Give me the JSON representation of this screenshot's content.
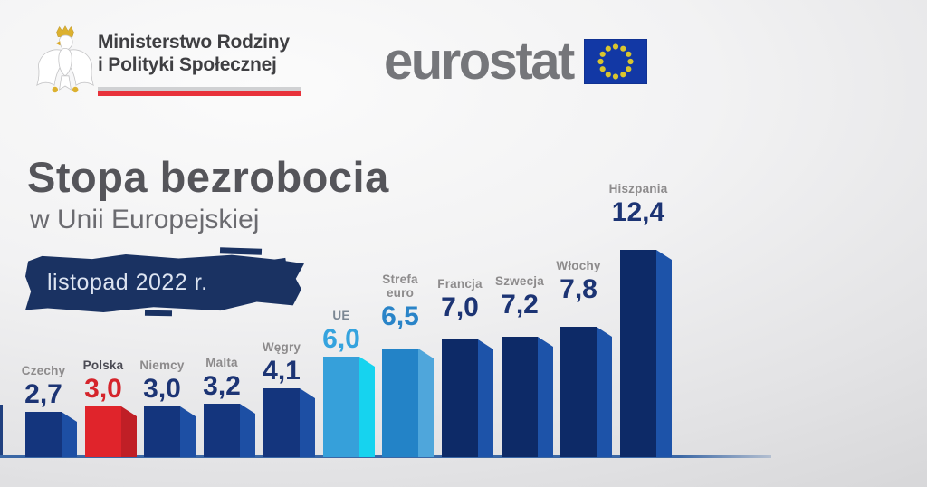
{
  "header": {
    "ministry": {
      "line1": "Ministerstwo Rodziny",
      "line2": "i Polityki Społecznej",
      "logo": "polish-white-eagle",
      "underline_colors": [
        "#d0d1d3",
        "#e8323b"
      ]
    },
    "eurostat": {
      "wordmark": "eurostat",
      "flag": "eu-flag",
      "flag_blue": "#1238a5",
      "star_yellow": "#d9c52f"
    }
  },
  "title": {
    "main": "Stopa bezrobocia",
    "subtitle": "w Unii Europejskiej",
    "period": "listopad 2022 r."
  },
  "colors": {
    "navy_front": "#14357d",
    "navy_side": "#1d4fa4",
    "dark_navy_front": "#0d2a67",
    "dark_navy_side": "#1d53a9",
    "red_front": "#e0242b",
    "red_side": "#c01f26",
    "eu_front": "#36a0da",
    "eu_side": "#16d3ef",
    "eurozone_front": "#2383c7",
    "eurozone_side": "#4fa6db",
    "value_navy": "#1c3474",
    "value_red": "#d5242b",
    "label_gray": "#8d8b8c",
    "banner_navy": "#1a3262",
    "axis_blue": "#3a67a5"
  },
  "chart_data": {
    "type": "bar",
    "title": "Stopa bezrobocia w Unii Europejskiej",
    "period": "listopad 2022 r.",
    "categories": [
      "Czechy",
      "Polska",
      "Niemcy",
      "Malta",
      "Węgry",
      "UE",
      "Strefa euro",
      "Francja",
      "Szwecja",
      "Włochy",
      "Hiszpania"
    ],
    "values": [
      2.7,
      3.0,
      3.0,
      3.2,
      4.1,
      6.0,
      6.5,
      7.0,
      7.2,
      7.8,
      12.4
    ],
    "value_labels": [
      "2,7",
      "3,0",
      "3,0",
      "3,2",
      "4,1",
      "6,0",
      "6,5",
      "7,0",
      "7,2",
      "7,8",
      "12,4"
    ],
    "highlight": "Polska",
    "legend": "none",
    "grid": false,
    "bars": [
      {
        "id": "czechy",
        "name": "Czechy",
        "value": 2.7,
        "value_label": "2,7",
        "front": "#14357d",
        "side": "#1d4fa4",
        "name_color": "#8d8b8c",
        "value_color": "#1c3474"
      },
      {
        "id": "polska",
        "name": "Polska",
        "value": 3.0,
        "value_label": "3,0",
        "front": "#e0242b",
        "side": "#c01f26",
        "name_color": "#4b4b54",
        "value_color": "#d5242b"
      },
      {
        "id": "niemcy",
        "name": "Niemcy",
        "value": 3.0,
        "value_label": "3,0",
        "front": "#14357d",
        "side": "#1d4fa4",
        "name_color": "#8d8b8c",
        "value_color": "#1c3474"
      },
      {
        "id": "malta",
        "name": "Malta",
        "value": 3.2,
        "value_label": "3,2",
        "front": "#14357d",
        "side": "#1d4fa4",
        "name_color": "#8d8b8c",
        "value_color": "#1c3474"
      },
      {
        "id": "wegry",
        "name": "Węgry",
        "value": 4.1,
        "value_label": "4,1",
        "front": "#14357d",
        "side": "#1d4fa4",
        "name_color": "#8d8b8c",
        "value_color": "#1c3474"
      },
      {
        "id": "ue",
        "name": "UE",
        "value": 6.0,
        "value_label": "6,0",
        "front": "#36a0da",
        "side": "#16d3ef",
        "name_color": "#7b8793",
        "value_color": "#35a3de"
      },
      {
        "id": "strefa-euro",
        "name": "Strefa\neuro",
        "value": 6.5,
        "value_label": "6,5",
        "front": "#2383c7",
        "side": "#4fa6db",
        "name_color": "#8d8b8c",
        "value_color": "#2a84c8"
      },
      {
        "id": "francja",
        "name": "Francja",
        "value": 7.0,
        "value_label": "7,0",
        "front": "#0d2a67",
        "side": "#1d53a9",
        "name_color": "#8d8b8c",
        "value_color": "#1c3474"
      },
      {
        "id": "szwecja",
        "name": "Szwecja",
        "value": 7.2,
        "value_label": "7,2",
        "front": "#0d2a67",
        "side": "#1d53a9",
        "name_color": "#8d8b8c",
        "value_color": "#1c3474"
      },
      {
        "id": "wlochy",
        "name": "Włochy",
        "value": 7.8,
        "value_label": "7,8",
        "front": "#0d2a67",
        "side": "#1d53a9",
        "name_color": "#8d8b8c",
        "value_color": "#1c3474"
      },
      {
        "id": "hiszpania",
        "name": "Hiszpania",
        "value": 12.4,
        "value_label": "12,4",
        "front": "#0d2a67",
        "side": "#1d53a9",
        "name_color": "#8d8b8c",
        "value_color": "#1c3474"
      }
    ]
  }
}
